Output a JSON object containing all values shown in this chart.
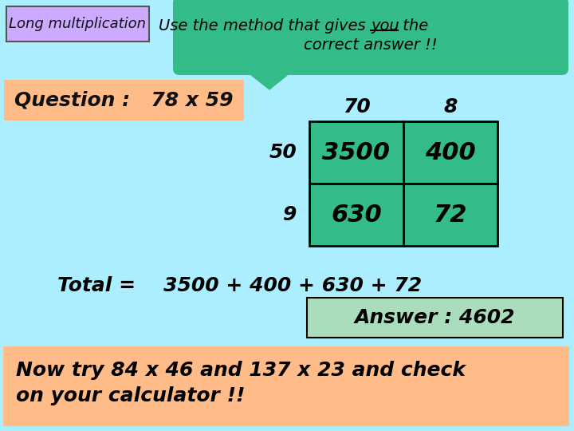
{
  "bg_color": "#aaeeff",
  "title_box_text": "Long multiplication",
  "title_box_bg": "#ccaaff",
  "title_box_border": "#555555",
  "speech_bubble_bg": "#33bb88",
  "question_text": "Question :   78 x 59",
  "question_box_bg": "#ffbb88",
  "col_headers": [
    "70",
    "8"
  ],
  "row_headers": [
    "50",
    "9"
  ],
  "grid_values": [
    [
      "3500",
      "400"
    ],
    [
      "630",
      "72"
    ]
  ],
  "grid_bg": "#33bb88",
  "total_text": "Total =    3500 + 400 + 630 + 72",
  "answer_text": "Answer : 4602",
  "answer_box_bg": "#aaddbb",
  "try_text_line1": "Now try 84 x 46 and 137 x 23 and check",
  "try_text_line2": "on your calculator !!",
  "try_box_bg": "#ffbb88",
  "font_color": "#111111"
}
